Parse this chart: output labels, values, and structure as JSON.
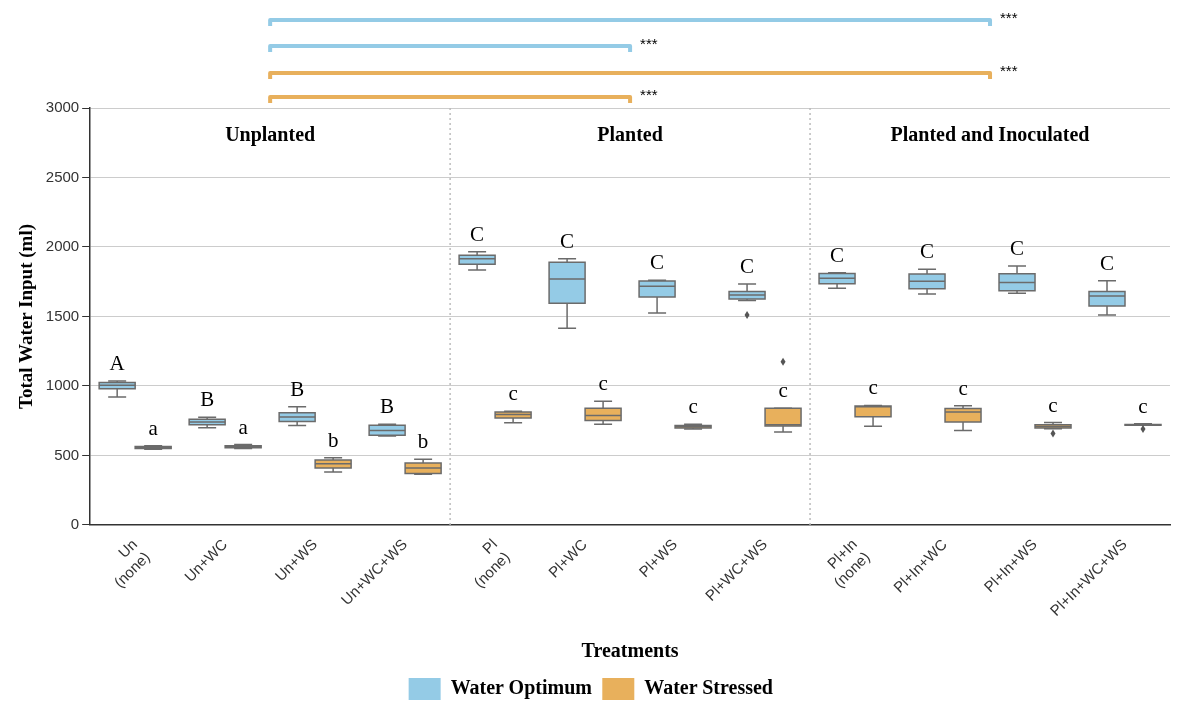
{
  "chart_data": {
    "type": "box",
    "categories": [
      "Un (none)",
      "Un+WC",
      "Un+WS",
      "Un+WC+WS",
      "Pl (none)",
      "Pl+WC",
      "Pl+WS",
      "Pl+WC+WS",
      "Pl+In (none)",
      "Pl+In+WC",
      "Pl+In+WS",
      "Pl+In+WC+WS"
    ],
    "xlabel": "Treatments",
    "ylabel": "Total Water Input (ml)",
    "ylim": [
      0,
      3000
    ],
    "yticks": [
      0,
      500,
      1000,
      1500,
      2000,
      2500,
      3000
    ],
    "grid": "y",
    "legend": "bottom",
    "series": [
      {
        "name": "Water Optimum",
        "color": "#94cbe6",
        "value_labels": [
          "A",
          "B",
          "B",
          "B",
          "C",
          "C",
          "C",
          "C",
          "C",
          "C",
          "C",
          "C"
        ],
        "boxes": [
          {
            "low": 920,
            "q1": 980,
            "median": 1005,
            "q3": 1025,
            "high": 1035
          },
          {
            "low": 700,
            "q1": 720,
            "median": 740,
            "q3": 760,
            "high": 775
          },
          {
            "low": 715,
            "q1": 745,
            "median": 777,
            "q3": 808,
            "high": 850
          },
          {
            "low": 640,
            "q1": 645,
            "median": 680,
            "q3": 718,
            "high": 725
          },
          {
            "low": 1835,
            "q1": 1875,
            "median": 1915,
            "q3": 1940,
            "high": 1965
          },
          {
            "low": 1415,
            "q1": 1595,
            "median": 1770,
            "q3": 1890,
            "high": 1915
          },
          {
            "low": 1525,
            "q1": 1640,
            "median": 1718,
            "q3": 1755,
            "high": 1760
          },
          {
            "low": 1615,
            "q1": 1625,
            "median": 1655,
            "q3": 1680,
            "high": 1733,
            "outliers": [
              1510
            ]
          },
          {
            "low": 1703,
            "q1": 1735,
            "median": 1775,
            "q3": 1810,
            "high": 1815
          },
          {
            "low": 1662,
            "q1": 1700,
            "median": 1753,
            "q3": 1805,
            "high": 1840
          },
          {
            "low": 1667,
            "q1": 1685,
            "median": 1745,
            "q3": 1808,
            "high": 1863
          },
          {
            "low": 1510,
            "q1": 1575,
            "median": 1647,
            "q3": 1680,
            "high": 1757
          }
        ]
      },
      {
        "name": "Water Stressed",
        "color": "#e8b05c",
        "value_labels": [
          "a",
          "a",
          "b",
          "b",
          "c",
          "c",
          "c",
          "c",
          "c",
          "c",
          "c",
          "c"
        ],
        "boxes": [
          {
            "low": 545,
            "q1": 550,
            "median": 558,
            "q3": 565,
            "high": 570
          },
          {
            "low": 550,
            "q1": 555,
            "median": 563,
            "q3": 570,
            "high": 578
          },
          {
            "low": 380,
            "q1": 410,
            "median": 440,
            "q3": 468,
            "high": 483
          },
          {
            "low": 365,
            "q1": 370,
            "median": 410,
            "q3": 445,
            "high": 473
          },
          {
            "low": 735,
            "q1": 770,
            "median": 795,
            "q3": 812,
            "high": 818
          },
          {
            "low": 725,
            "q1": 752,
            "median": 787,
            "q3": 840,
            "high": 890
          },
          {
            "low": 690,
            "q1": 698,
            "median": 706,
            "q3": 715,
            "high": 725
          },
          {
            "low": 668,
            "q1": 712,
            "median": 720,
            "q3": 840,
            "high": 840,
            "outliers": [
              1175
            ]
          },
          {
            "low": 710,
            "q1": 778,
            "median": 850,
            "q3": 855,
            "high": 860
          },
          {
            "low": 680,
            "q1": 740,
            "median": 812,
            "q3": 838,
            "high": 858
          },
          {
            "low": 692,
            "q1": 698,
            "median": 708,
            "q3": 720,
            "high": 737,
            "outliers": [
              657
            ]
          },
          {
            "low": 718,
            "q1": 718,
            "median": 720,
            "q3": 722,
            "high": 728,
            "outliers": [
              690
            ]
          }
        ]
      }
    ],
    "annotations": [
      "Unplanted",
      "Planted",
      "Planted and Inoculated",
      "***",
      "***",
      "***",
      "***"
    ]
  }
}
